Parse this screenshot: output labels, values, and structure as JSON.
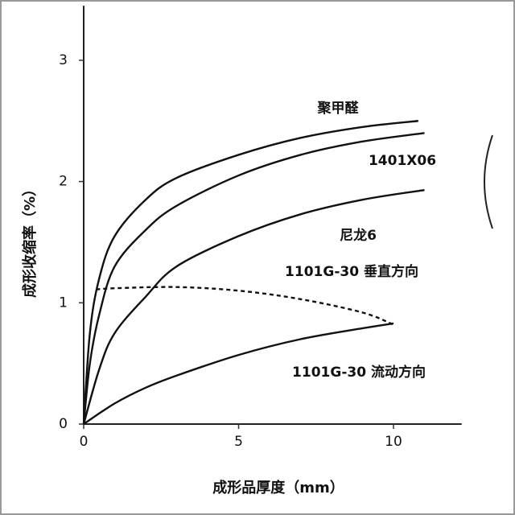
{
  "chart_data": {
    "type": "line",
    "x_label": "成形品厚度（mm）",
    "y_label": "成形收缩率（%）",
    "xlim": [
      0,
      12.2
    ],
    "ylim": [
      0,
      3.45
    ],
    "xticks": [
      0,
      5,
      10
    ],
    "yticks": [
      0,
      1,
      2,
      3
    ],
    "series": [
      {
        "name": "聚甲醛",
        "color": "#111111",
        "dash": false,
        "x": [
          0,
          0.2,
          0.5,
          1,
          2,
          3,
          5,
          7,
          9,
          10.8
        ],
        "values": [
          0,
          0.75,
          1.2,
          1.55,
          1.85,
          2.03,
          2.22,
          2.36,
          2.45,
          2.5
        ]
      },
      {
        "name": "1401X06",
        "color": "#111111",
        "dash": false,
        "x": [
          0,
          0.2,
          0.5,
          1,
          2,
          3,
          5,
          7,
          9,
          11
        ],
        "values": [
          0,
          0.5,
          0.9,
          1.3,
          1.6,
          1.8,
          2.05,
          2.22,
          2.33,
          2.4
        ]
      },
      {
        "name": "尼龙6",
        "color": "#111111",
        "dash": false,
        "x": [
          0,
          0.5,
          1,
          2,
          3,
          5,
          7,
          9,
          11
        ],
        "values": [
          0,
          0.45,
          0.75,
          1.05,
          1.3,
          1.55,
          1.73,
          1.85,
          1.93
        ]
      },
      {
        "name": "1101G-30  垂直方向",
        "color": "#111111",
        "dash": true,
        "x": [
          0.4,
          1,
          3,
          5,
          7,
          9,
          10
        ],
        "values": [
          1.11,
          1.12,
          1.13,
          1.1,
          1.03,
          0.92,
          0.82
        ]
      },
      {
        "name": "1101G-30  流动方向",
        "color": "#111111",
        "dash": false,
        "x": [
          0,
          1,
          2,
          3,
          5,
          7,
          9,
          10
        ],
        "values": [
          0,
          0.17,
          0.3,
          0.4,
          0.57,
          0.7,
          0.79,
          0.83
        ]
      }
    ]
  }
}
